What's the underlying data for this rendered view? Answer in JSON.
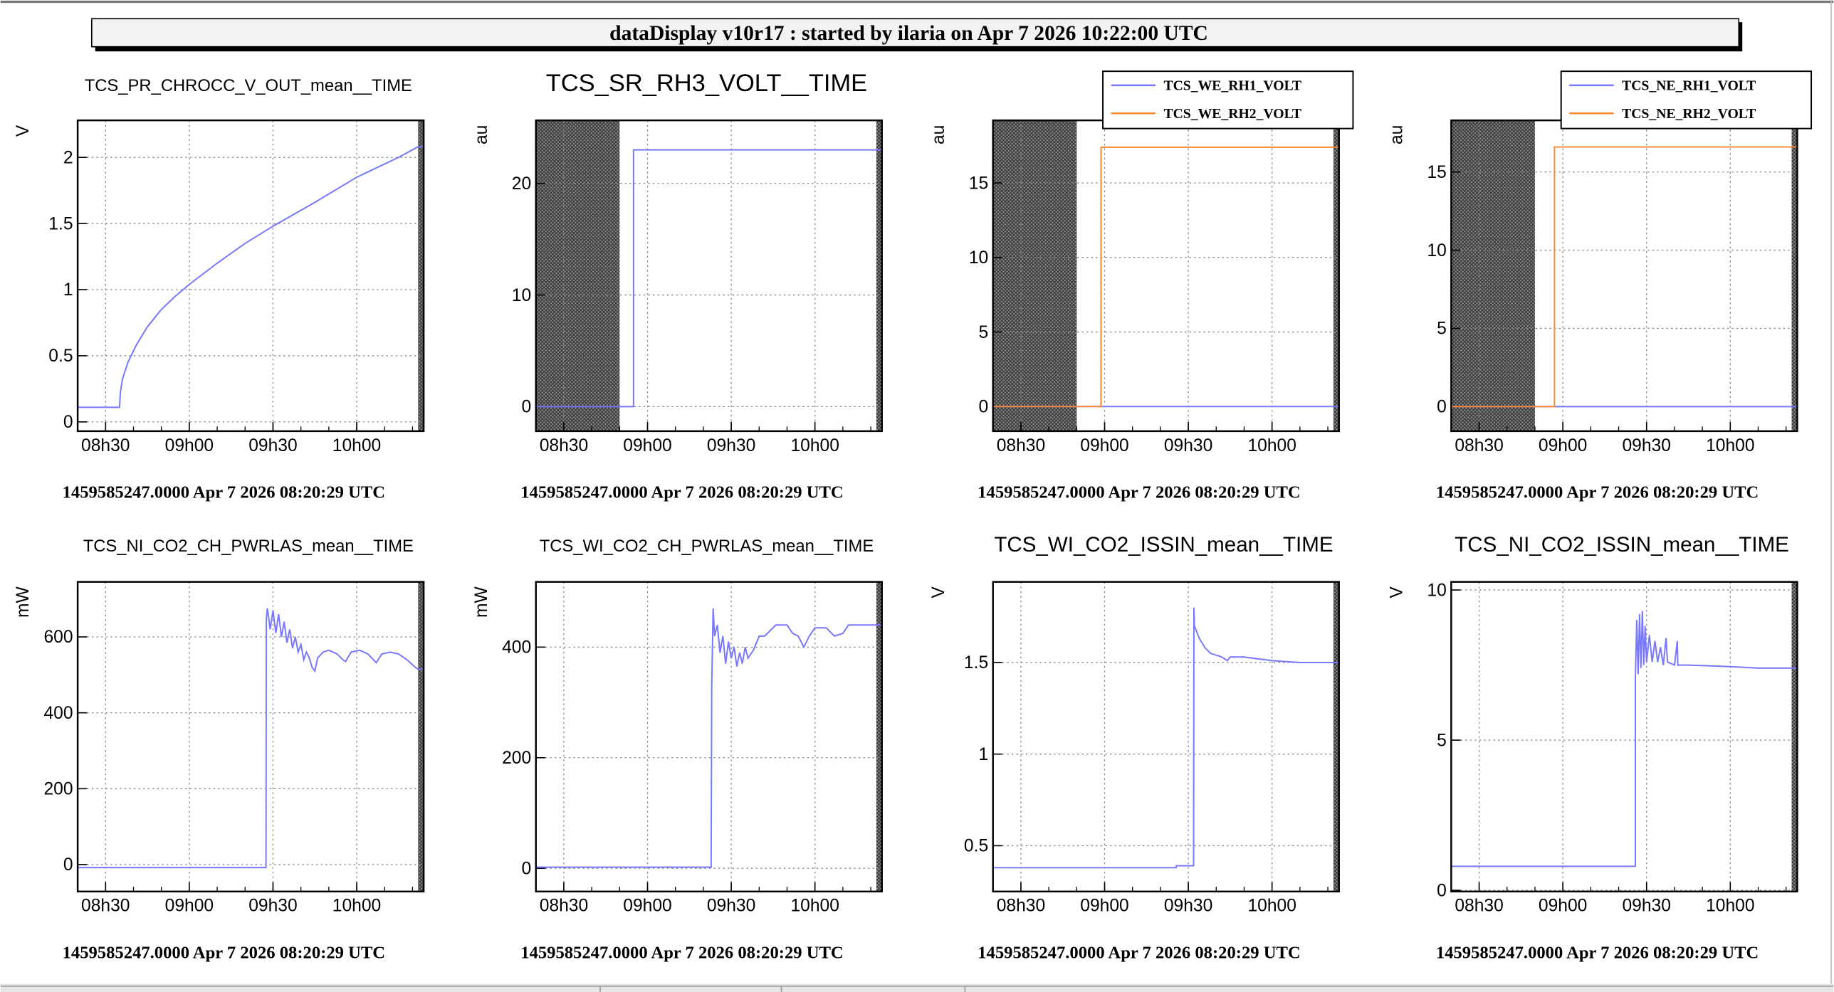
{
  "header": {
    "title": "dataDisplay v10r17 : started by ilaria on Apr  7 2026 10:22:00 UTC"
  },
  "colors": {
    "blue": "#7777ff",
    "orange": "#ff8833",
    "frame": "#000000",
    "grid": "#888888",
    "hatch": "#555555"
  },
  "chart_data": [
    {
      "type": "line",
      "title": "TCS_PR_CHROCC_V_OUT_mean__TIME",
      "title_size": "small",
      "ylabel": "V",
      "xticks": [
        "08h30",
        "09h00",
        "09h30",
        "10h00"
      ],
      "xlim_min_since_0800": [
        20,
        144
      ],
      "ylim": [
        -0.07,
        2.28
      ],
      "yticks": [
        0,
        0.5,
        1,
        1.5,
        2
      ],
      "ytick_labels": [
        "0",
        "0.5",
        "1",
        "1.5",
        "2"
      ],
      "grid": true,
      "hatched_ranges": [
        [
          142,
          144
        ]
      ],
      "footer": "1459585247.0000 Apr 7 2026 08:20:29 UTC",
      "series": [
        {
          "name": "TCS_PR_CHROCC_V_OUT_mean",
          "color": "blue",
          "points": [
            [
              20,
              0.11
            ],
            [
              35,
              0.11
            ],
            [
              35.3,
              0.22
            ],
            [
              36,
              0.32
            ],
            [
              38,
              0.45
            ],
            [
              41,
              0.58
            ],
            [
              45,
              0.72
            ],
            [
              50,
              0.85
            ],
            [
              55,
              0.95
            ],
            [
              60,
              1.04
            ],
            [
              70,
              1.2
            ],
            [
              80,
              1.35
            ],
            [
              90,
              1.48
            ],
            [
              105,
              1.66
            ],
            [
              120,
              1.85
            ],
            [
              135,
              2.0
            ],
            [
              142,
              2.08
            ],
            [
              144,
              2.08
            ]
          ]
        }
      ]
    },
    {
      "type": "line",
      "title": "TCS_SR_RH3_VOLT__TIME",
      "title_size": "large",
      "ylabel": "au",
      "xticks": [
        "08h30",
        "09h00",
        "09h30",
        "10h00"
      ],
      "xlim_min_since_0800": [
        20,
        144
      ],
      "ylim": [
        -2.2,
        25.65
      ],
      "yticks": [
        0,
        10,
        20
      ],
      "ytick_labels": [
        "0",
        "10",
        "20"
      ],
      "grid": true,
      "hatched_ranges": [
        [
          20,
          50
        ],
        [
          142,
          144
        ]
      ],
      "footer": "1459585247.0000 Apr 7 2026 08:20:29 UTC",
      "series": [
        {
          "name": "TCS_SR_RH3_VOLT",
          "color": "blue",
          "points": [
            [
              20,
              0
            ],
            [
              55,
              0
            ],
            [
              55,
              23
            ],
            [
              144,
              23
            ]
          ]
        }
      ]
    },
    {
      "type": "line",
      "title": "",
      "ylabel": "au",
      "xticks": [
        "08h30",
        "09h00",
        "09h30",
        "10h00"
      ],
      "xlim_min_since_0800": [
        20,
        144
      ],
      "ylim": [
        -1.65,
        19.2
      ],
      "yticks": [
        0,
        5,
        10,
        15
      ],
      "ytick_labels": [
        "0",
        "5",
        "10",
        "15"
      ],
      "grid": true,
      "hatched_ranges": [
        [
          20,
          50
        ],
        [
          142,
          144
        ]
      ],
      "footer": "1459585247.0000 Apr 7 2026 08:20:29 UTC",
      "legend": [
        "TCS_WE_RH1_VOLT",
        "TCS_WE_RH2_VOLT"
      ],
      "legend_placement": "top-right",
      "series": [
        {
          "name": "TCS_WE_RH1_VOLT",
          "color": "blue",
          "points": [
            [
              20,
              0
            ],
            [
              144,
              0
            ]
          ]
        },
        {
          "name": "TCS_WE_RH2_VOLT",
          "color": "orange",
          "points": [
            [
              20,
              0
            ],
            [
              58.7,
              0
            ],
            [
              58.7,
              17.4
            ],
            [
              144,
              17.4
            ]
          ]
        }
      ]
    },
    {
      "type": "line",
      "title": "",
      "ylabel": "au",
      "xticks": [
        "08h30",
        "09h00",
        "09h30",
        "10h00"
      ],
      "xlim_min_since_0800": [
        20,
        144
      ],
      "ylim": [
        -1.57,
        18.3
      ],
      "yticks": [
        0,
        5,
        10,
        15
      ],
      "ytick_labels": [
        "0",
        "5",
        "10",
        "15"
      ],
      "grid": true,
      "hatched_ranges": [
        [
          20,
          50
        ],
        [
          142,
          144
        ]
      ],
      "footer": "1459585247.0000 Apr 7 2026 08:20:29 UTC",
      "legend": [
        "TCS_NE_RH1_VOLT",
        "TCS_NE_RH2_VOLT"
      ],
      "legend_placement": "top-right",
      "series": [
        {
          "name": "TCS_NE_RH1_VOLT",
          "color": "blue",
          "points": [
            [
              20,
              0
            ],
            [
              144,
              0
            ]
          ]
        },
        {
          "name": "TCS_NE_RH2_VOLT",
          "color": "orange",
          "points": [
            [
              20,
              0
            ],
            [
              57,
              0
            ],
            [
              57,
              16.6
            ],
            [
              144,
              16.6
            ]
          ]
        }
      ]
    },
    {
      "type": "line",
      "title": "TCS_NI_CO2_CH_PWRLAS_mean__TIME",
      "title_size": "small",
      "ylabel": "mW",
      "xticks": [
        "08h30",
        "09h00",
        "09h30",
        "10h00"
      ],
      "xlim_min_since_0800": [
        20,
        144
      ],
      "ylim": [
        -71,
        745
      ],
      "yticks": [
        0,
        200,
        400,
        600
      ],
      "ytick_labels": [
        "0",
        "200",
        "400",
        "600"
      ],
      "grid": true,
      "hatched_ranges": [
        [
          142,
          144
        ]
      ],
      "footer": "1459585247.0000 Apr 7 2026 08:20:29 UTC",
      "series": [
        {
          "name": "TCS_NI_CO2_CH_PWRLAS_mean",
          "color": "blue",
          "points": [
            [
              20,
              -8
            ],
            [
              87.5,
              -8
            ],
            [
              87.6,
              650
            ],
            [
              88,
              675
            ],
            [
              89,
              620
            ],
            [
              90,
              670
            ],
            [
              91,
              610
            ],
            [
              92,
              660
            ],
            [
              93,
              600
            ],
            [
              94,
              640
            ],
            [
              95,
              585
            ],
            [
              96,
              620
            ],
            [
              97,
              570
            ],
            [
              98,
              600
            ],
            [
              99,
              560
            ],
            [
              100,
              580
            ],
            [
              101,
              540
            ],
            [
              102,
              560
            ],
            [
              103,
              545
            ],
            [
              104,
              520
            ],
            [
              105,
              510
            ],
            [
              106,
              545
            ],
            [
              108,
              560
            ],
            [
              110,
              565
            ],
            [
              113,
              555
            ],
            [
              115,
              540
            ],
            [
              116,
              535
            ],
            [
              118,
              560
            ],
            [
              121,
              565
            ],
            [
              124,
              555
            ],
            [
              126,
              540
            ],
            [
              127,
              532
            ],
            [
              129,
              555
            ],
            [
              132,
              560
            ],
            [
              135,
              555
            ],
            [
              138,
              540
            ],
            [
              141,
              520
            ],
            [
              142,
              515
            ],
            [
              144,
              515
            ]
          ]
        }
      ]
    },
    {
      "type": "line",
      "title": "TCS_WI_CO2_CH_PWRLAS_mean__TIME",
      "title_size": "small",
      "ylabel": "mW",
      "xticks": [
        "08h30",
        "09h00",
        "09h30",
        "10h00"
      ],
      "xlim_min_since_0800": [
        20,
        144
      ],
      "ylim": [
        -42,
        518
      ],
      "yticks": [
        0,
        200,
        400
      ],
      "ytick_labels": [
        "0",
        "200",
        "400"
      ],
      "grid": true,
      "hatched_ranges": [
        [
          142,
          144
        ]
      ],
      "footer": "1459585247.0000 Apr 7 2026 08:20:29 UTC",
      "series": [
        {
          "name": "TCS_WI_CO2_CH_PWRLAS_mean",
          "color": "blue",
          "points": [
            [
              20,
              2
            ],
            [
              82.8,
              2
            ],
            [
              83,
              330
            ],
            [
              83.5,
              470
            ],
            [
              84,
              420
            ],
            [
              85,
              440
            ],
            [
              86,
              390
            ],
            [
              87,
              420
            ],
            [
              88,
              370
            ],
            [
              89,
              410
            ],
            [
              90,
              380
            ],
            [
              91,
              400
            ],
            [
              92,
              365
            ],
            [
              93,
              390
            ],
            [
              94,
              370
            ],
            [
              95,
              400
            ],
            [
              96,
              380
            ],
            [
              98,
              395
            ],
            [
              100,
              420
            ],
            [
              102,
              420
            ],
            [
              104,
              430
            ],
            [
              106,
              440
            ],
            [
              110,
              440
            ],
            [
              112,
              425
            ],
            [
              114,
              420
            ],
            [
              116,
              400
            ],
            [
              118,
              420
            ],
            [
              120,
              435
            ],
            [
              124,
              435
            ],
            [
              127,
              420
            ],
            [
              130,
              425
            ],
            [
              132,
              440
            ],
            [
              144,
              440
            ]
          ]
        }
      ]
    },
    {
      "type": "line",
      "title": "TCS_WI_CO2_ISSIN_mean__TIME",
      "title_size": "medium",
      "ylabel": "V",
      "xticks": [
        "08h30",
        "09h00",
        "09h30",
        "10h00"
      ],
      "xlim_min_since_0800": [
        20,
        144
      ],
      "ylim": [
        0.25,
        1.94
      ],
      "yticks": [
        0.5,
        1,
        1.5
      ],
      "ytick_labels": [
        "0.5",
        "1",
        "1.5"
      ],
      "grid": true,
      "hatched_ranges": [
        [
          142,
          144
        ]
      ],
      "footer": "1459585247.0000 Apr 7 2026 08:20:29 UTC",
      "series": [
        {
          "name": "TCS_WI_CO2_ISSIN_mean",
          "color": "blue",
          "points": [
            [
              20,
              0.38
            ],
            [
              85.7,
              0.38
            ],
            [
              85.7,
              0.39
            ],
            [
              91.9,
              0.39
            ],
            [
              92,
              1.8
            ],
            [
              92.2,
              1.7
            ],
            [
              94,
              1.63
            ],
            [
              96,
              1.58
            ],
            [
              98,
              1.55
            ],
            [
              100,
              1.54
            ],
            [
              102,
              1.53
            ],
            [
              104,
              1.51
            ],
            [
              105,
              1.53
            ],
            [
              110,
              1.53
            ],
            [
              115,
              1.52
            ],
            [
              120,
              1.51
            ],
            [
              130,
              1.5
            ],
            [
              144,
              1.5
            ]
          ]
        }
      ]
    },
    {
      "type": "line",
      "title": "TCS_NI_CO2_ISSIN_mean__TIME",
      "title_size": "medium",
      "ylabel": "V",
      "xticks": [
        "08h30",
        "09h00",
        "09h30",
        "10h00"
      ],
      "xlim_min_since_0800": [
        20,
        144
      ],
      "ylim": [
        -0.04,
        10.27
      ],
      "yticks": [
        0,
        5,
        10
      ],
      "ytick_labels": [
        "0",
        "5",
        "10"
      ],
      "grid": true,
      "hatched_ranges": [
        [
          142,
          144
        ]
      ],
      "footer": "1459585247.0000 Apr 7 2026 08:20:29 UTC",
      "series": [
        {
          "name": "TCS_NI_CO2_ISSIN_mean",
          "color": "blue",
          "points": [
            [
              20,
              0.8
            ],
            [
              86,
              0.8
            ],
            [
              86,
              7
            ],
            [
              86.5,
              9
            ],
            [
              87,
              7.2
            ],
            [
              87.5,
              9.2
            ],
            [
              88,
              7.4
            ],
            [
              88.5,
              9.3
            ],
            [
              89,
              7.5
            ],
            [
              89.5,
              8.8
            ],
            [
              90,
              7.6
            ],
            [
              91,
              8.5
            ],
            [
              92,
              7.6
            ],
            [
              93,
              8.3
            ],
            [
              94,
              7.6
            ],
            [
              95,
              8.1
            ],
            [
              96,
              7.5
            ],
            [
              97,
              8.4
            ],
            [
              97.5,
              7.6
            ],
            [
              100,
              7.5
            ],
            [
              101,
              8.3
            ],
            [
              101.2,
              7.5
            ],
            [
              105,
              7.5
            ],
            [
              120,
              7.45
            ],
            [
              130,
              7.4
            ],
            [
              144,
              7.4
            ]
          ]
        }
      ]
    }
  ]
}
